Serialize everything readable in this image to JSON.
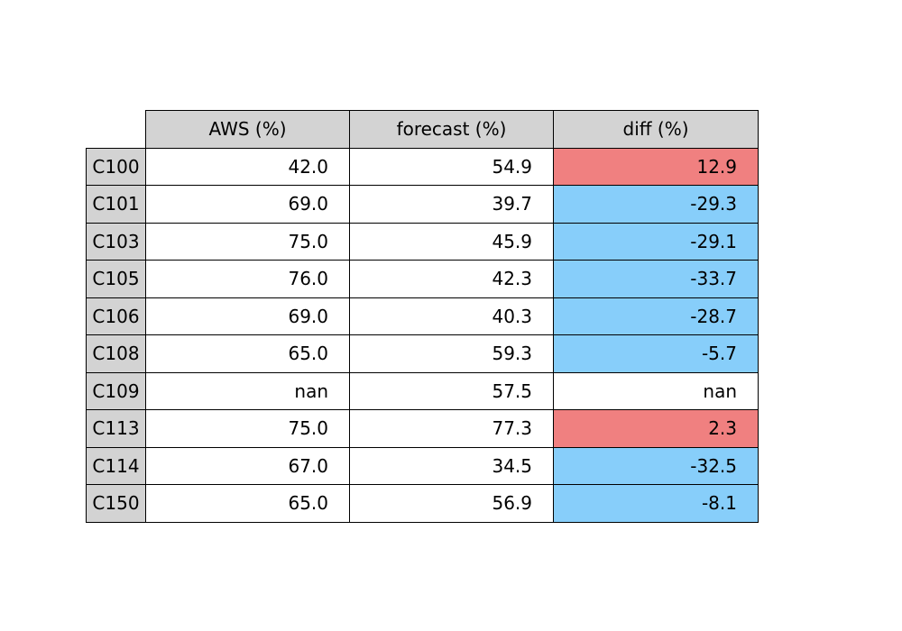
{
  "chart_data": {
    "type": "table",
    "columns": [
      "AWS (%)",
      "forecast (%)",
      "diff (%)"
    ],
    "rows": [
      {
        "label": "C100",
        "values": [
          "42.0",
          "54.9",
          "12.9"
        ],
        "diff_color": "#f08080"
      },
      {
        "label": "C101",
        "values": [
          "69.0",
          "39.7",
          "-29.3"
        ],
        "diff_color": "#87cefa"
      },
      {
        "label": "C103",
        "values": [
          "75.0",
          "45.9",
          "-29.1"
        ],
        "diff_color": "#87cefa"
      },
      {
        "label": "C105",
        "values": [
          "76.0",
          "42.3",
          "-33.7"
        ],
        "diff_color": "#87cefa"
      },
      {
        "label": "C106",
        "values": [
          "69.0",
          "40.3",
          "-28.7"
        ],
        "diff_color": "#87cefa"
      },
      {
        "label": "C108",
        "values": [
          "65.0",
          "59.3",
          "-5.7"
        ],
        "diff_color": "#87cefa"
      },
      {
        "label": "C109",
        "values": [
          "nan",
          "57.5",
          "nan"
        ],
        "diff_color": "#ffffff"
      },
      {
        "label": "C113",
        "values": [
          "75.0",
          "77.3",
          "2.3"
        ],
        "diff_color": "#f08080"
      },
      {
        "label": "C114",
        "values": [
          "67.0",
          "34.5",
          "-32.5"
        ],
        "diff_color": "#87cefa"
      },
      {
        "label": "C150",
        "values": [
          "65.0",
          "56.9",
          "-8.1"
        ],
        "diff_color": "#87cefa"
      }
    ],
    "colors": {
      "header_background": "#d3d3d3",
      "positive_diff": "#f08080",
      "negative_diff": "#87cefa",
      "nan_diff": "#ffffff"
    }
  }
}
